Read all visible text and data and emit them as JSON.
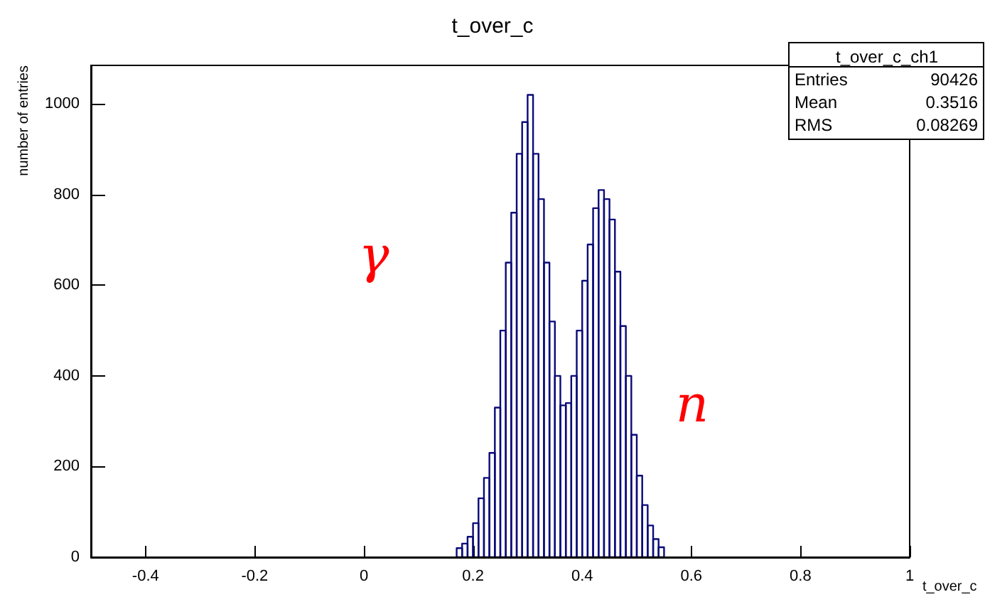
{
  "chart_data": {
    "type": "histogram",
    "title": "t_over_c",
    "xlabel": "t_over_c",
    "ylabel": "number of entries",
    "bins": [
      0.17,
      0.18,
      0.19,
      0.2,
      0.21,
      0.22,
      0.23,
      0.24,
      0.25,
      0.26,
      0.27,
      0.28,
      0.29,
      0.3,
      0.31,
      0.32,
      0.33,
      0.34,
      0.35,
      0.36,
      0.37,
      0.38,
      0.39,
      0.4,
      0.41,
      0.42,
      0.43,
      0.44,
      0.45,
      0.46,
      0.47,
      0.48,
      0.49,
      0.5,
      0.51,
      0.52,
      0.53,
      0.54,
      0.55
    ],
    "values": [
      20,
      30,
      45,
      75,
      130,
      175,
      230,
      330,
      500,
      650,
      760,
      890,
      960,
      1020,
      890,
      790,
      650,
      520,
      400,
      335,
      340,
      400,
      500,
      610,
      690,
      770,
      810,
      790,
      745,
      630,
      510,
      400,
      270,
      180,
      115,
      70,
      40,
      22
    ],
    "color": "#0a0a78",
    "xlim": [
      -0.5,
      1
    ],
    "xticks": [
      -0.4,
      -0.2,
      0,
      0.2,
      0.4,
      0.6,
      0.8,
      1
    ],
    "ylim": [
      0,
      1085
    ],
    "yticks": [
      0,
      200,
      400,
      600,
      800,
      1000
    ],
    "annotations": [
      "t_over_c_ch1",
      "Entries 90426",
      "Mean 0.3516",
      "RMS 0.08269",
      "γ",
      "n"
    ]
  }
}
